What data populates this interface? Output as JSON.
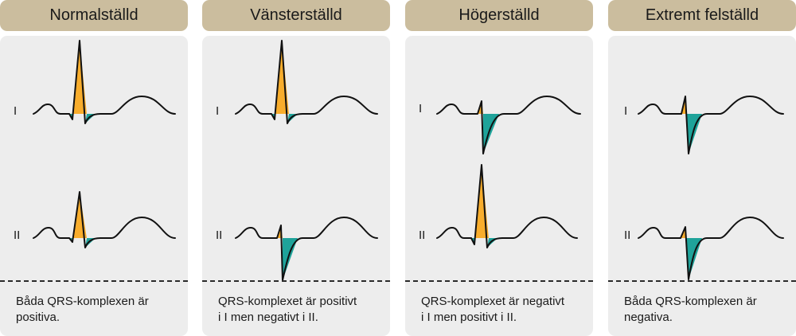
{
  "colors": {
    "header_bg": "#cbbd9e",
    "panel_bg": "#ededed",
    "positive_fill": "#f8ad2c",
    "negative_fill": "#1fa39a",
    "trace": "#111111"
  },
  "panels": [
    {
      "title": "Normalställd",
      "lead1": "I",
      "lead2": "II",
      "caption_line1": "Båda QRS-komplexen är",
      "caption_line2": "positiva."
    },
    {
      "title": "Vänsterställd",
      "lead1": "I",
      "lead2": "II",
      "caption_line1": "QRS-komplexet är positivt",
      "caption_line2": "i I men negativt i II."
    },
    {
      "title": "Högerställd",
      "lead1": "I",
      "lead2": "II",
      "caption_line1": "QRS-komplexet är negativt",
      "caption_line2": "i I men positivt i II."
    },
    {
      "title": "Extremt felställd",
      "lead1": "I",
      "lead2": "II",
      "caption_line1": "Båda QRS-komplexen är",
      "caption_line2": "negativa."
    }
  ]
}
